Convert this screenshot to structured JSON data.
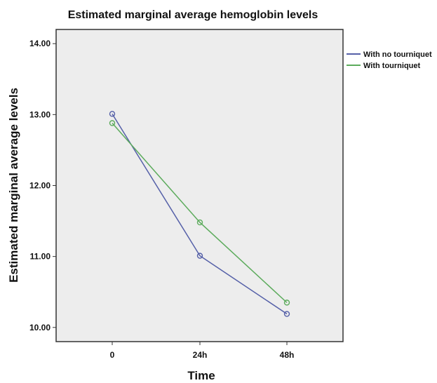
{
  "chart_data": {
    "type": "line",
    "title": "Estimated marginal average hemoglobin levels",
    "xlabel": "Time",
    "ylabel": "Estimated marginal average levels",
    "categories": [
      "0",
      "24h",
      "48h"
    ],
    "ylim": [
      9.8,
      14.2
    ],
    "yticks": [
      10.0,
      11.0,
      12.0,
      13.0,
      14.0
    ],
    "ytick_labels": [
      "10.00",
      "11.00",
      "12.00",
      "13.00",
      "14.00"
    ],
    "grid": false,
    "legend_position": "right",
    "series": [
      {
        "name": "With no tourniquet",
        "values": [
          13.01,
          11.01,
          10.19
        ],
        "color": "#5560a8"
      },
      {
        "name": "With tourniquet",
        "values": [
          12.88,
          11.48,
          10.35
        ],
        "color": "#5cab5c"
      }
    ],
    "plot_background": "#ededed"
  }
}
